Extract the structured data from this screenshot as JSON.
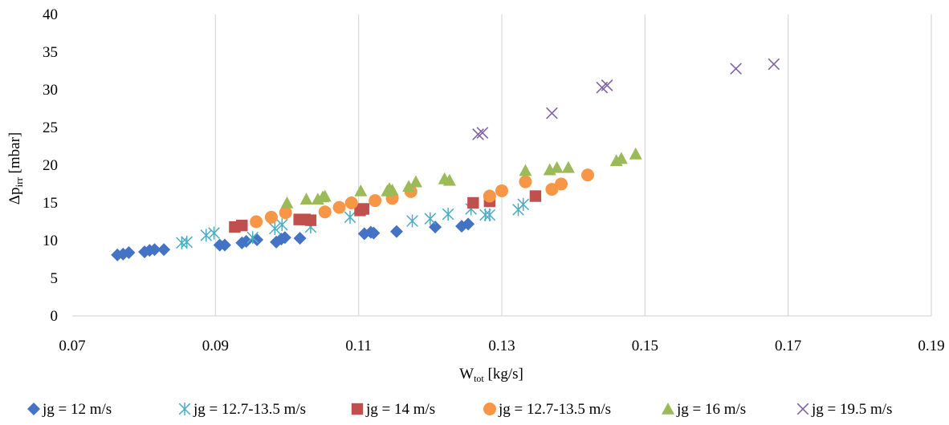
{
  "chart_data": {
    "type": "scatter",
    "title": "",
    "xlabel_main": "W",
    "xlabel_sub": "tot",
    "xlabel_unit": " [kg/s]",
    "ylabel_main": "Δp",
    "ylabel_sub": "irr",
    "ylabel_unit": " [mbar]",
    "xlim": [
      0.07,
      0.19
    ],
    "ylim": [
      0,
      40
    ],
    "xticks": [
      0.07,
      0.09,
      0.11,
      0.13,
      0.15,
      0.17,
      0.19
    ],
    "xtick_labels": [
      "0.07",
      "0.09",
      "0.11",
      "0.13",
      "0.15",
      "0.17",
      "0.19"
    ],
    "yticks": [
      0,
      5,
      10,
      15,
      20,
      25,
      30,
      35,
      40
    ],
    "ytick_labels": [
      "0",
      "5",
      "10",
      "15",
      "20",
      "25",
      "30",
      "35",
      "40"
    ],
    "grid": "vertical",
    "legend_position": "bottom",
    "series": [
      {
        "name": "jg = 12 m/s",
        "marker": "diamond",
        "color": "#4472C4",
        "points": [
          [
            0.0763,
            8.1
          ],
          [
            0.0771,
            8.2
          ],
          [
            0.0779,
            8.4
          ],
          [
            0.0801,
            8.5
          ],
          [
            0.0808,
            8.7
          ],
          [
            0.0815,
            8.8
          ],
          [
            0.0828,
            8.8
          ],
          [
            0.0906,
            9.4
          ],
          [
            0.0913,
            9.4
          ],
          [
            0.0937,
            9.7
          ],
          [
            0.0943,
            9.9
          ],
          [
            0.0958,
            10.1
          ],
          [
            0.0985,
            9.8
          ],
          [
            0.0992,
            10.2
          ],
          [
            0.0997,
            10.4
          ],
          [
            0.1018,
            10.3
          ],
          [
            0.1108,
            10.9
          ],
          [
            0.1117,
            11.1
          ],
          [
            0.1121,
            11.0
          ],
          [
            0.1153,
            11.2
          ],
          [
            0.1207,
            11.8
          ],
          [
            0.1244,
            11.9
          ],
          [
            0.1253,
            12.2
          ]
        ]
      },
      {
        "name": "jg = 12.7-13.5 m/s",
        "marker": "asterisk",
        "color": "#4BACC6",
        "points": [
          [
            0.0853,
            9.7
          ],
          [
            0.086,
            9.8
          ],
          [
            0.0887,
            10.7
          ],
          [
            0.0898,
            11.0
          ],
          [
            0.0952,
            10.4
          ],
          [
            0.0983,
            11.6
          ],
          [
            0.0993,
            12.1
          ],
          [
            0.1033,
            11.8
          ],
          [
            0.1088,
            13.1
          ],
          [
            0.12,
            12.9
          ],
          [
            0.1175,
            12.6
          ],
          [
            0.1225,
            13.5
          ],
          [
            0.1257,
            14.2
          ],
          [
            0.1277,
            13.4
          ],
          [
            0.1283,
            13.4
          ],
          [
            0.1323,
            14.1
          ],
          [
            0.133,
            14.8
          ]
        ]
      },
      {
        "name": "jg = 14 m/s",
        "marker": "square",
        "color": "#C0504D",
        "points": [
          [
            0.0927,
            11.8
          ],
          [
            0.0937,
            12.0
          ],
          [
            0.1017,
            12.8
          ],
          [
            0.1025,
            12.8
          ],
          [
            0.1033,
            12.7
          ],
          [
            0.1102,
            14.0
          ],
          [
            0.1107,
            14.2
          ],
          [
            0.126,
            15.0
          ],
          [
            0.1283,
            15.2
          ],
          [
            0.1347,
            15.9
          ]
        ]
      },
      {
        "name": "jg = 12.7-13.5 m/s",
        "marker": "circle",
        "color": "#F79646",
        "points": [
          [
            0.0957,
            12.5
          ],
          [
            0.0978,
            13.1
          ],
          [
            0.0998,
            13.7
          ],
          [
            0.1053,
            13.8
          ],
          [
            0.1073,
            14.4
          ],
          [
            0.109,
            15.0
          ],
          [
            0.1123,
            15.3
          ],
          [
            0.1147,
            15.6
          ],
          [
            0.1173,
            16.5
          ],
          [
            0.1283,
            15.9
          ],
          [
            0.13,
            16.6
          ],
          [
            0.1333,
            17.8
          ],
          [
            0.137,
            16.8
          ],
          [
            0.1383,
            17.5
          ],
          [
            0.142,
            18.7
          ]
        ]
      },
      {
        "name": "jg = 16 m/s",
        "marker": "triangle",
        "color": "#9BBB59",
        "points": [
          [
            0.1,
            15.0
          ],
          [
            0.1027,
            15.5
          ],
          [
            0.1043,
            15.5
          ],
          [
            0.105,
            15.8
          ],
          [
            0.1053,
            15.9
          ],
          [
            0.1103,
            16.6
          ],
          [
            0.114,
            16.6
          ],
          [
            0.1143,
            16.9
          ],
          [
            0.1147,
            16.7
          ],
          [
            0.117,
            17.2
          ],
          [
            0.118,
            17.8
          ],
          [
            0.122,
            18.2
          ],
          [
            0.1227,
            18.0
          ],
          [
            0.1333,
            19.3
          ],
          [
            0.1367,
            19.4
          ],
          [
            0.1377,
            19.7
          ],
          [
            0.1393,
            19.7
          ],
          [
            0.146,
            20.6
          ],
          [
            0.1467,
            20.9
          ],
          [
            0.1487,
            21.5
          ]
        ]
      },
      {
        "name": "jg = 19.5 m/s",
        "marker": "x",
        "color": "#8064A2",
        "points": [
          [
            0.1267,
            24.1
          ],
          [
            0.1273,
            24.3
          ],
          [
            0.137,
            26.9
          ],
          [
            0.144,
            30.3
          ],
          [
            0.1447,
            30.6
          ],
          [
            0.1627,
            32.8
          ],
          [
            0.168,
            33.4
          ]
        ]
      }
    ]
  }
}
